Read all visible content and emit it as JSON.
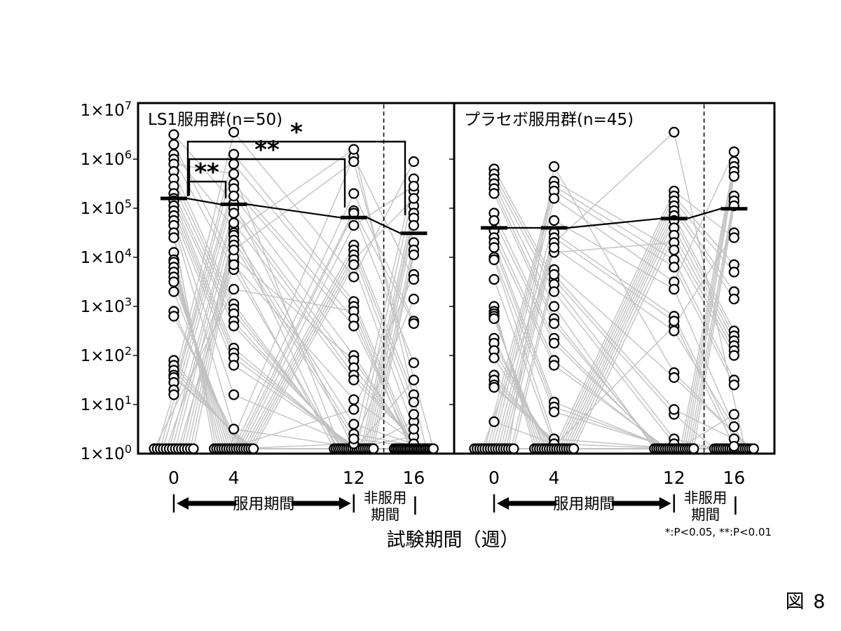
{
  "figure_label": "図 8",
  "chart_data": {
    "type": "scatter",
    "yscale": "log",
    "ylim_log10": [
      0,
      7
    ],
    "y_tick_label_prefix": "1×10",
    "y_tick_exponents": [
      7,
      6,
      5,
      4,
      3,
      2,
      1,
      0
    ],
    "weeks": [
      0,
      4,
      12,
      16
    ],
    "x_tick_labels": [
      "0",
      "4",
      "12",
      "16"
    ],
    "xlabel": "試験期間（週）",
    "dashed_line_week": 14,
    "grid": false,
    "point_color": "#000000",
    "line_color": "#c2c2c2",
    "mean_color": "#000000",
    "significance_note": "*:P<0.05, **:P<0.01",
    "period_labels": {
      "dosing": "服用期間",
      "nondosing_line1": "非服用",
      "nondosing_line2": "期間"
    },
    "panels": [
      {
        "title": "LS1服用群(n=50)",
        "n": 50,
        "means_log10": [
          5.2,
          5.08,
          4.81,
          4.49
        ],
        "brackets": [
          {
            "label": "**",
            "from_week": 0,
            "to_week": 4
          },
          {
            "label": "**",
            "from_week": 0,
            "to_week": 12
          },
          {
            "label": "*",
            "from_week": 0,
            "to_week": 16
          }
        ],
        "subjects_log10": [
          [
            6.5,
            5.1,
            0.1,
            0
          ],
          [
            6.3,
            3.9,
            0,
            0
          ],
          [
            6.1,
            4.6,
            0,
            0
          ],
          [
            6.0,
            3.75,
            0,
            0
          ],
          [
            5.9,
            5.7,
            0,
            0
          ],
          [
            5.75,
            3.05,
            0,
            0
          ],
          [
            5.6,
            2.95,
            0,
            0
          ],
          [
            5.45,
            2.85,
            0,
            0
          ],
          [
            5.3,
            2.7,
            0,
            0
          ],
          [
            5.2,
            2.6,
            0,
            0.35
          ],
          [
            5.15,
            2.15,
            0,
            5.6
          ],
          [
            5.05,
            2.05,
            0,
            1.5
          ],
          [
            4.95,
            1.95,
            0,
            5.35
          ],
          [
            4.85,
            1.8,
            0,
            0.65
          ],
          [
            4.75,
            1.2,
            0,
            5.05
          ],
          [
            4.65,
            0.5,
            0,
            4.9
          ],
          [
            4.5,
            0,
            0,
            4.8
          ],
          [
            4.4,
            0,
            0,
            4.65
          ],
          [
            4.1,
            0,
            0,
            4.3
          ],
          [
            3.95,
            0,
            0,
            4.15
          ],
          [
            3.9,
            0,
            0,
            4.05
          ],
          [
            3.8,
            0,
            0.9,
            3.65
          ],
          [
            3.7,
            0,
            6.05,
            3.55
          ],
          [
            3.6,
            0,
            0.2,
            3.15
          ],
          [
            3.5,
            0,
            5.3,
            2.7
          ],
          [
            3.3,
            0,
            4.95,
            2.65
          ],
          [
            2.9,
            0,
            4.9,
            1.85
          ],
          [
            2.8,
            0,
            4.65,
            5.45
          ],
          [
            1.9,
            0,
            4.25,
            1.2
          ],
          [
            1.8,
            0,
            4.15,
            1.05
          ],
          [
            1.7,
            0,
            4.05,
            0.8
          ],
          [
            1.6,
            0,
            3.95,
            5.2
          ],
          [
            1.55,
            0,
            3.85,
            0.5
          ],
          [
            1.45,
            6.55,
            3.6,
            5.95
          ],
          [
            1.3,
            6.1,
            3.1,
            0.2
          ],
          [
            1.2,
            5.9,
            3.0,
            0.1
          ],
          [
            0,
            3.35,
            2.9,
            0
          ],
          [
            0,
            5.5,
            2.75,
            0
          ],
          [
            0,
            5.4,
            2.6,
            0
          ],
          [
            0,
            5.25,
            2.0,
            0
          ],
          [
            0,
            4.0,
            1.9,
            0
          ],
          [
            0,
            5.0,
            1.75,
            0
          ],
          [
            0,
            4.9,
            1.6,
            0
          ],
          [
            0,
            4.7,
            1.5,
            0
          ],
          [
            0,
            3.85,
            1.1,
            0
          ],
          [
            0,
            4.5,
            6.2,
            0
          ],
          [
            0,
            4.45,
            0.6,
            0
          ],
          [
            0,
            4.35,
            0.4,
            0
          ],
          [
            0,
            4.25,
            0.3,
            0
          ],
          [
            0,
            4.15,
            5.95,
            0
          ]
        ]
      },
      {
        "title": "プラセボ服用群(n=45)",
        "n": 45,
        "means_log10": [
          4.6,
          4.6,
          4.79,
          4.99
        ],
        "brackets": [],
        "subjects_log10": [
          [
            5.8,
            3.55,
            0.8,
            0
          ],
          [
            5.7,
            3.45,
            0.3,
            0
          ],
          [
            5.6,
            3.3,
            0.2,
            0
          ],
          [
            5.5,
            3.0,
            0,
            0
          ],
          [
            5.4,
            2.75,
            0,
            0
          ],
          [
            5.3,
            2.65,
            0,
            0
          ],
          [
            4.9,
            2.35,
            0,
            0
          ],
          [
            4.75,
            2.25,
            0,
            0
          ],
          [
            4.55,
            1.9,
            0,
            0
          ],
          [
            4.4,
            1.8,
            0,
            0
          ],
          [
            4.3,
            1.05,
            0,
            0
          ],
          [
            4.2,
            0.95,
            0,
            0
          ],
          [
            4.0,
            0.85,
            0,
            0
          ],
          [
            3.95,
            0.3,
            0,
            0
          ],
          [
            3.55,
            0.2,
            0,
            0.8
          ],
          [
            3.0,
            0,
            0,
            5.95
          ],
          [
            2.9,
            0,
            0,
            5.85
          ],
          [
            2.85,
            0,
            0,
            5.75
          ],
          [
            2.8,
            0,
            0,
            5.65
          ],
          [
            2.75,
            0,
            0,
            5.25
          ],
          [
            2.35,
            0,
            0,
            5.15
          ],
          [
            2.25,
            0,
            0,
            5.05
          ],
          [
            2.1,
            0,
            2.6,
            4.5
          ],
          [
            1.95,
            0,
            5.35,
            4.4
          ],
          [
            1.6,
            0,
            5.25,
            3.85
          ],
          [
            1.5,
            0,
            5.15,
            3.7
          ],
          [
            1.4,
            0,
            5.05,
            3.3
          ],
          [
            1.35,
            0,
            4.95,
            3.15
          ],
          [
            0.65,
            0,
            4.85,
            2.5
          ],
          [
            0,
            0,
            4.75,
            2.4
          ],
          [
            0,
            0,
            4.6,
            2.3
          ],
          [
            0,
            0,
            4.45,
            2.2
          ],
          [
            0,
            4.1,
            4.3,
            2.1
          ],
          [
            0,
            5.55,
            4.15,
            2.0
          ],
          [
            0,
            5.45,
            3.95,
            1.5
          ],
          [
            0,
            5.35,
            3.8,
            1.4
          ],
          [
            0,
            5.2,
            3.5,
            6.15
          ],
          [
            0,
            4.75,
            3.35,
            0.55
          ],
          [
            0,
            4.5,
            2.8,
            0.3
          ],
          [
            0,
            4.4,
            2.7,
            0.15
          ],
          [
            0,
            4.3,
            6.55,
            0
          ],
          [
            0,
            4.2,
            2.5,
            0
          ],
          [
            0,
            5.85,
            1.65,
            0
          ],
          [
            0,
            3.75,
            1.55,
            0
          ],
          [
            0,
            3.65,
            0.9,
            0
          ]
        ]
      }
    ]
  }
}
